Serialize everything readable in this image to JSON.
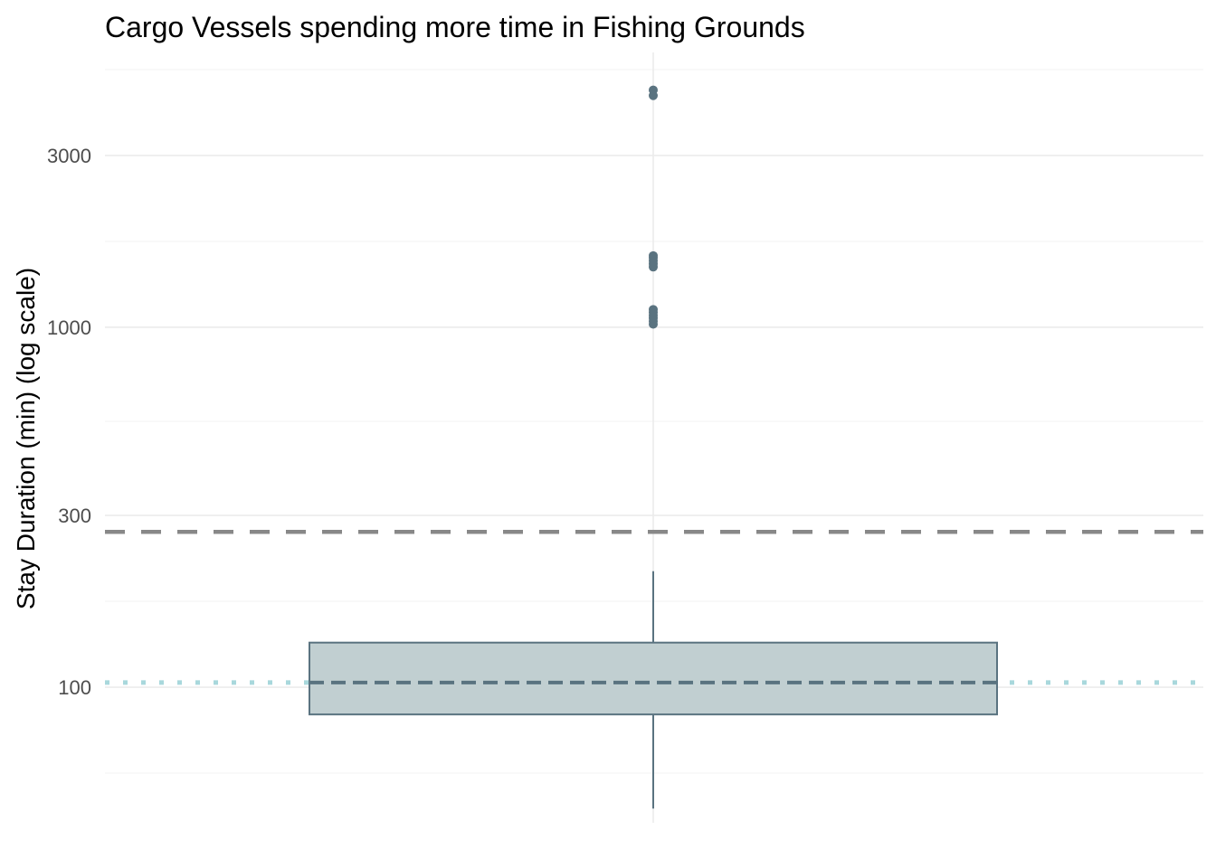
{
  "chart_data": {
    "type": "boxplot",
    "title": "Cargo Vessels spending more time in Fishing Grounds",
    "xlabel": "",
    "ylabel": "Stay Duration (min) (log scale)",
    "y_scale": "log10",
    "ylim": [
      42,
      5800
    ],
    "y_ticks": [
      100,
      300,
      1000,
      3000
    ],
    "y_tick_labels": [
      "100",
      "300",
      "1000",
      "3000"
    ],
    "grid": true,
    "box": {
      "lower_whisker": 46,
      "q1": 84,
      "median": 103,
      "q3": 133,
      "upper_whisker": 210,
      "outliers": [
        4400,
        4560,
        1470,
        1500,
        1530,
        1560,
        1580,
        1020,
        1040,
        1060,
        1080,
        1100,
        1120
      ]
    },
    "reference_lines": [
      {
        "value": 270,
        "style": "dashed",
        "color": "#888888"
      },
      {
        "value": 103,
        "style": "dotted",
        "color": "#a8d8dc"
      }
    ],
    "colors": {
      "box_fill": "#c1cfd1",
      "box_stroke": "#5a7380",
      "points": "#5a7380",
      "grid_major": "#ebebeb",
      "grid_minor": "#f3f3f3"
    }
  }
}
